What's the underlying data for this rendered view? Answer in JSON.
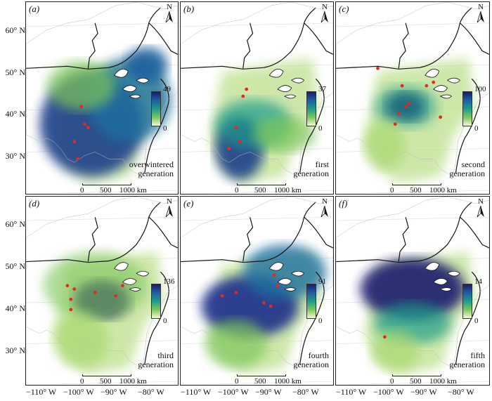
{
  "panels": [
    {
      "letter": "(a)",
      "max": "49",
      "min": "0",
      "gen_line1": "overwintered",
      "gen_line2": "generation"
    },
    {
      "letter": "(b)",
      "max": "37",
      "min": "0",
      "gen_line1": "first",
      "gen_line2": "generation"
    },
    {
      "letter": "(c)",
      "max": "100",
      "min": "0",
      "gen_line1": "second",
      "gen_line2": "generation"
    },
    {
      "letter": "(d)",
      "max": "136",
      "min": "0",
      "gen_line1": "third",
      "gen_line2": "generation"
    },
    {
      "letter": "(e)",
      "max": "91",
      "min": "0",
      "gen_line1": "fourth",
      "gen_line2": "generation"
    },
    {
      "letter": "(f)",
      "max": "14",
      "min": "0",
      "gen_line1": "fifth",
      "gen_line2": "generation"
    }
  ],
  "north": "N",
  "scale": {
    "t0": "0",
    "t1": "500",
    "t2": "1000 km"
  },
  "lat_labels": [
    "60° N",
    "50° N",
    "40° N",
    "30° N"
  ],
  "lon_labels": [
    "−110° W",
    "−100° W",
    "−90° W",
    "−80° W"
  ],
  "colors": {
    "high": "#1f1a6e",
    "mid": "#1e9c8a",
    "low": "#f4f8d8",
    "points": "#e8281e"
  }
}
